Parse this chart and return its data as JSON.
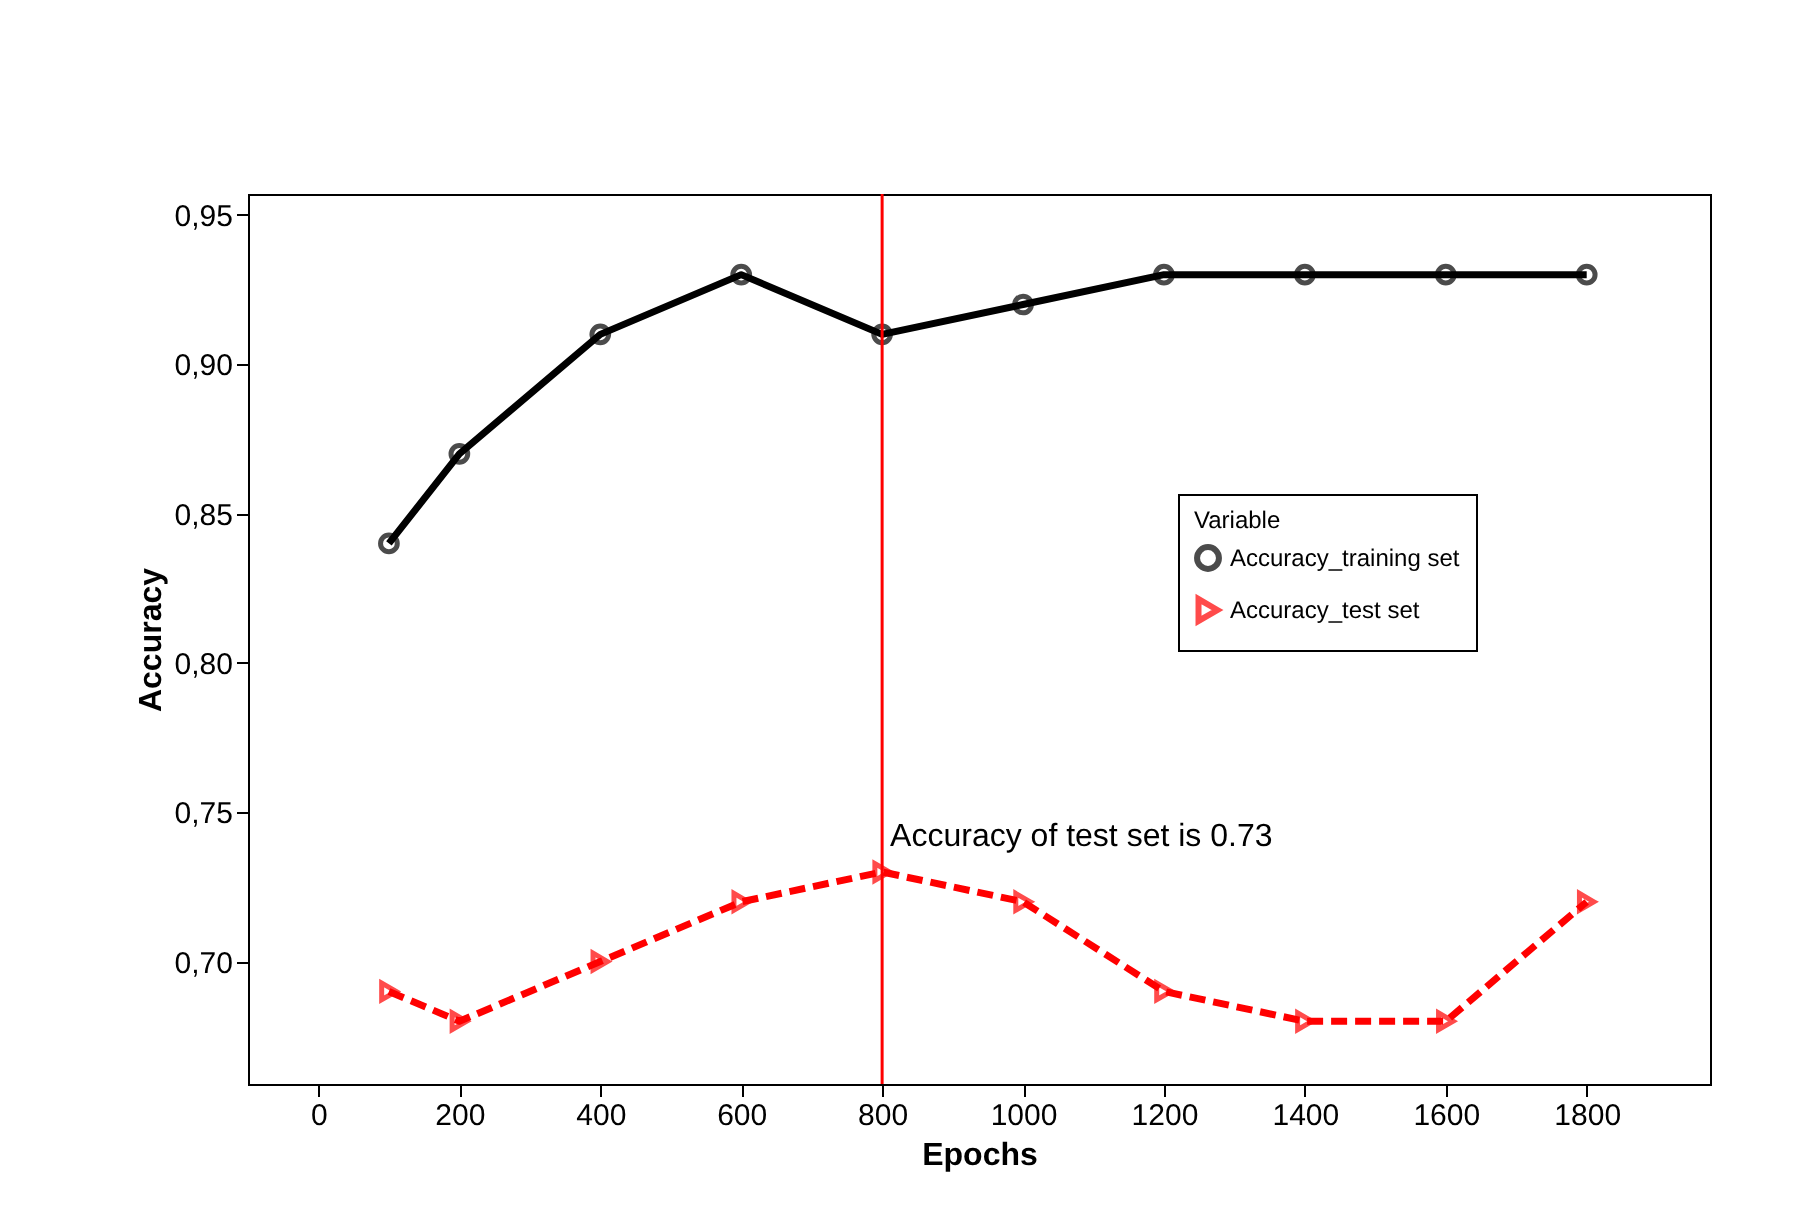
{
  "chart_data": {
    "type": "line",
    "xlabel": "Epochs",
    "ylabel": "Accuracy",
    "legend_title": "Variable",
    "x": [
      100,
      200,
      400,
      600,
      800,
      1000,
      1200,
      1400,
      1600,
      1800
    ],
    "series": [
      {
        "name": "Accuracy_training set",
        "color": "#000000",
        "marker": "circle",
        "line_style": "solid",
        "values": [
          0.84,
          0.87,
          0.91,
          0.93,
          0.91,
          0.92,
          0.93,
          0.93,
          0.93,
          0.93
        ]
      },
      {
        "name": "Accuracy_test set",
        "color": "#ff0000",
        "marker": "triangle",
        "line_style": "dashed",
        "values": [
          0.69,
          0.68,
          0.7,
          0.72,
          0.73,
          0.72,
          0.69,
          0.68,
          0.68,
          0.72
        ]
      }
    ],
    "xlim": [
      -100,
      1975
    ],
    "xticks": [
      0,
      200,
      400,
      600,
      800,
      1000,
      1200,
      1400,
      1600,
      1800
    ],
    "ylim": [
      0.659,
      0.957
    ],
    "yticks": [
      {
        "value": 0.7,
        "label": "0,70"
      },
      {
        "value": 0.75,
        "label": "0,75"
      },
      {
        "value": 0.8,
        "label": "0,80"
      },
      {
        "value": 0.85,
        "label": "0,85"
      },
      {
        "value": 0.9,
        "label": "0,90"
      },
      {
        "value": 0.95,
        "label": "0,95"
      }
    ],
    "ref_lines": [
      {
        "axis": "x",
        "value": 800,
        "color": "#ff0000"
      }
    ],
    "annotations": [
      {
        "text": "Accuracy of test set is 0.73",
        "x": 800,
        "y": 0.73
      }
    ],
    "legend": "right",
    "grid": false
  }
}
